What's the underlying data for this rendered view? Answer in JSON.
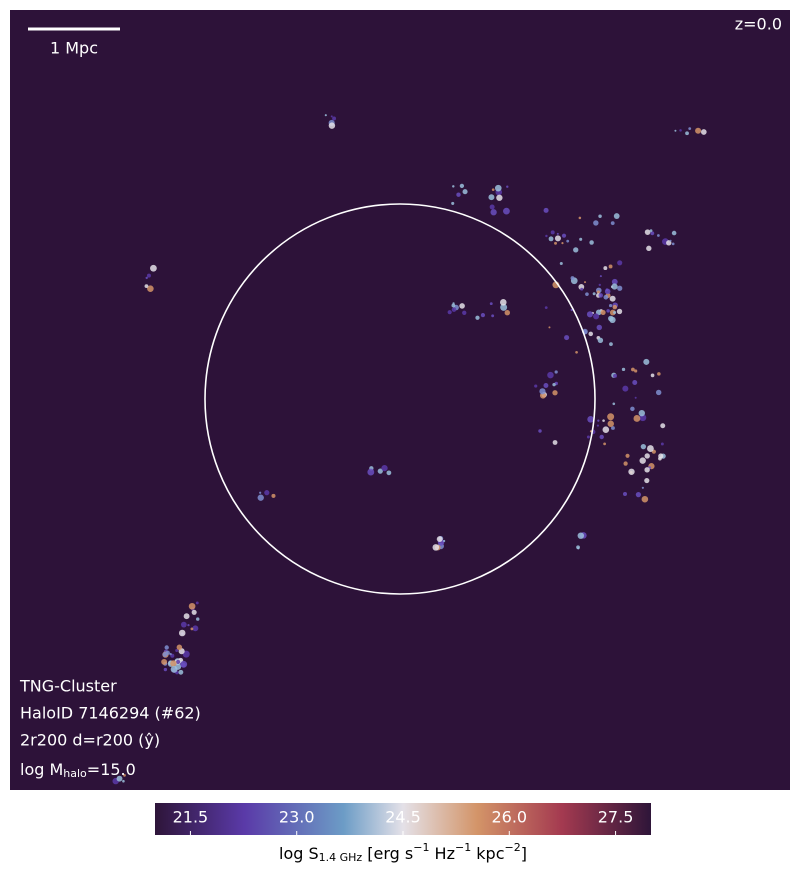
{
  "chart_data": {
    "type": "image",
    "scale_bar": "1 Mpc",
    "redshift": "z=0.0",
    "info": {
      "simulation": "TNG-Cluster",
      "halo": "HaloID 7146294 (#62)",
      "projection": "2r200 d=r200 (ŷ)",
      "mass": [
        "log M",
        "halo",
        "=15.0"
      ]
    },
    "colorbar": {
      "label": [
        "log S",
        "1.4 GHz",
        " [erg s",
        "−1",
        " Hz",
        "−1",
        " kpc",
        "−2",
        "]"
      ],
      "lim": [
        21.0,
        28.0
      ],
      "ticks": [
        {
          "value": 21.5,
          "label": "21.5"
        },
        {
          "value": 23.0,
          "label": "23.0"
        },
        {
          "value": 24.5,
          "label": "24.5"
        },
        {
          "value": 26.0,
          "label": "26.0"
        },
        {
          "value": 27.5,
          "label": "27.5"
        }
      ]
    }
  }
}
